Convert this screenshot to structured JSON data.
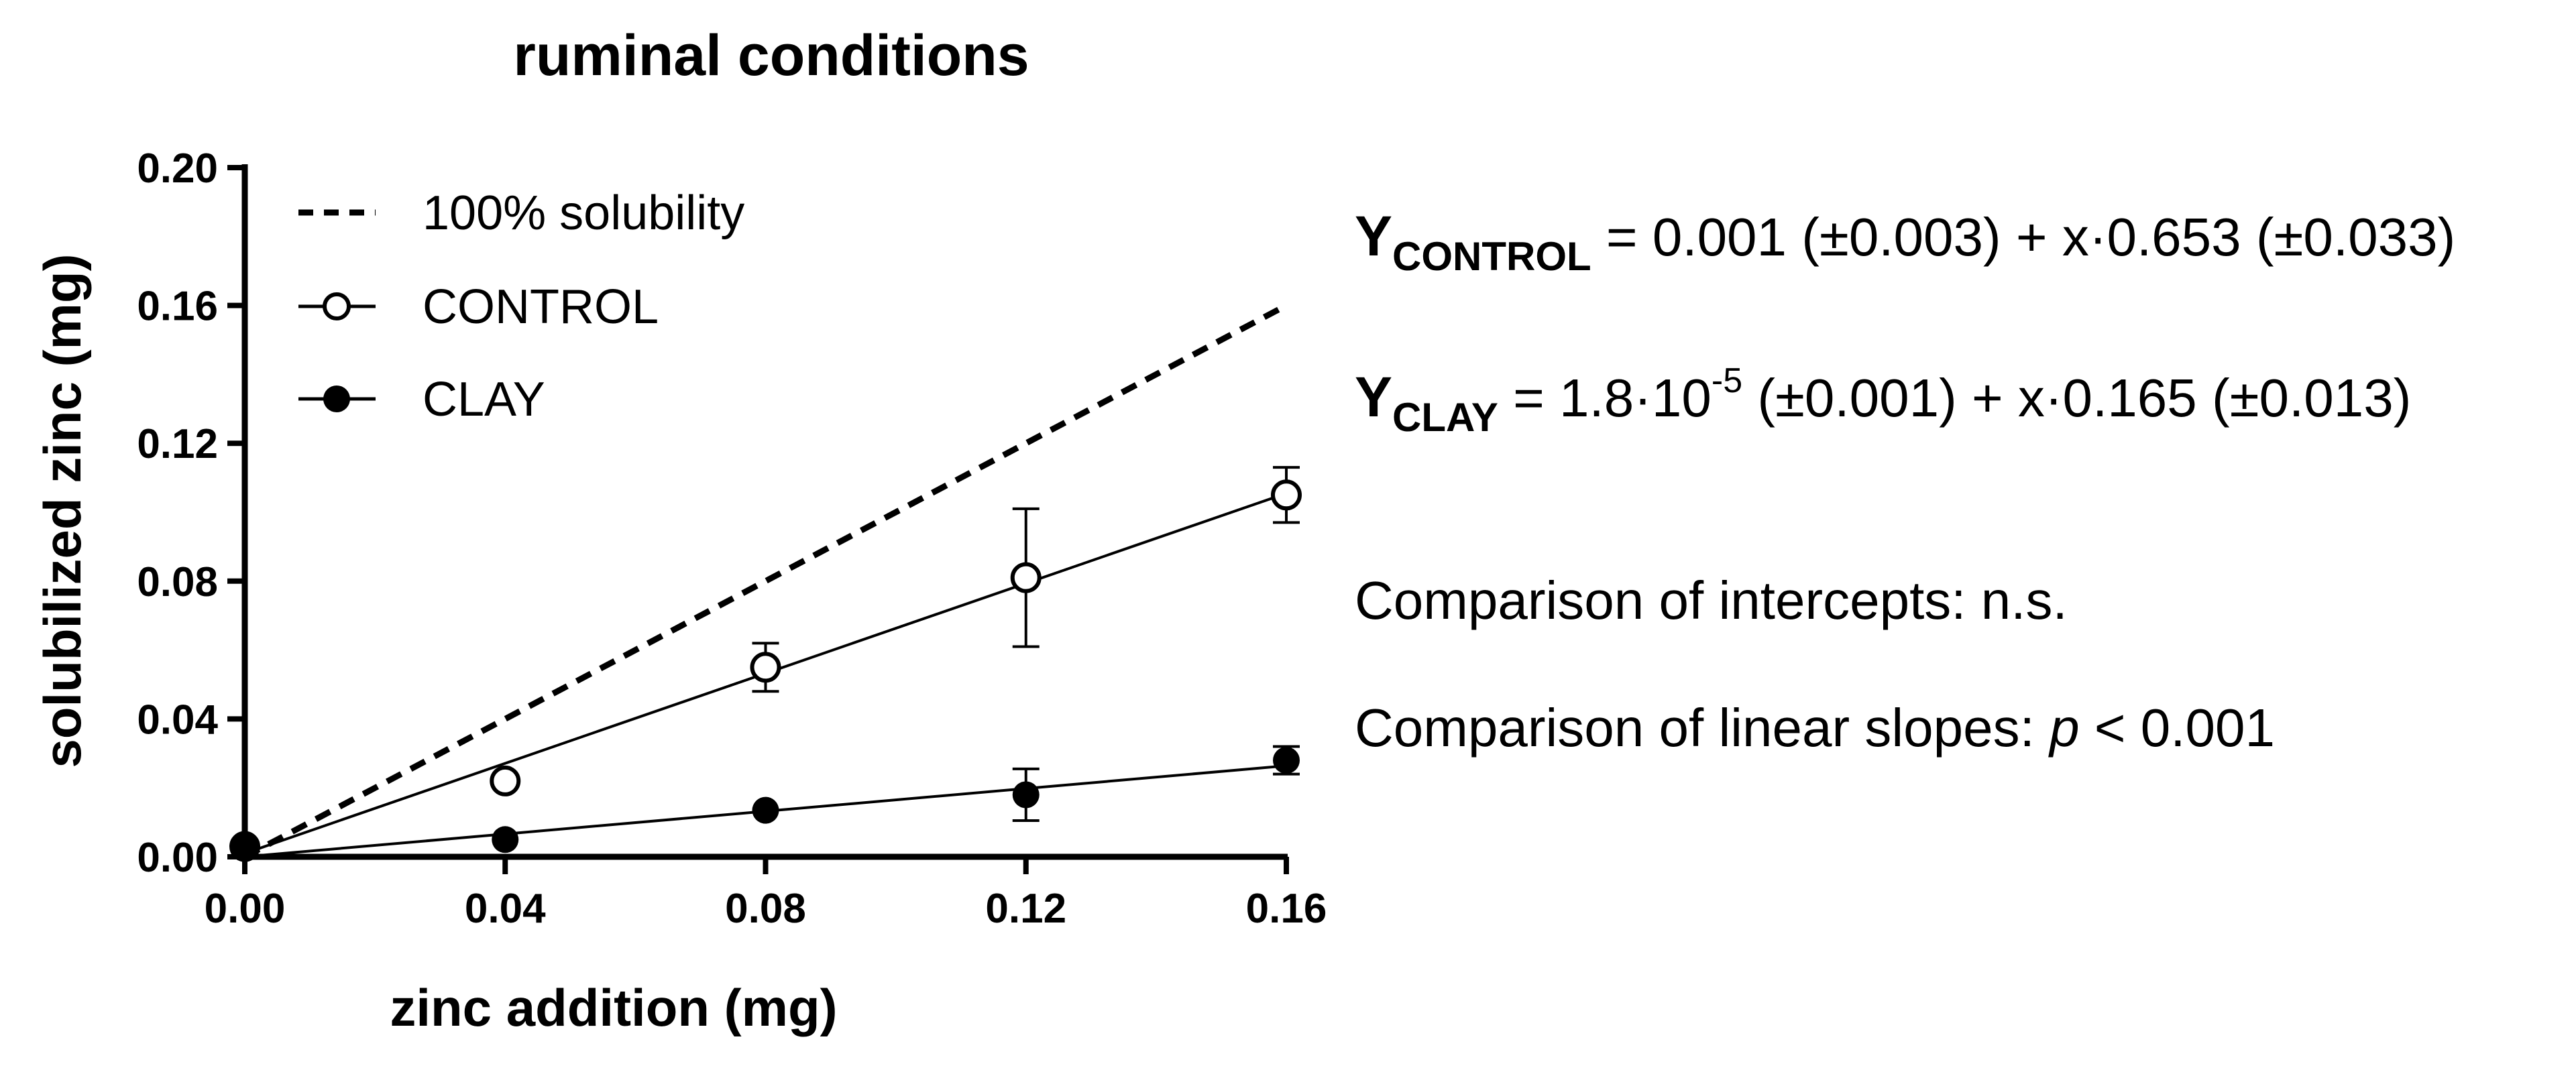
{
  "chart_data": {
    "type": "scatter",
    "title": "ruminal conditions",
    "xlabel": "zinc addition (mg)",
    "ylabel": "solubilized zinc (mg)",
    "xlim": [
      0,
      0.16
    ],
    "ylim": [
      0,
      0.2
    ],
    "xticks": [
      "0.00",
      "0.04",
      "0.08",
      "0.12",
      "0.16"
    ],
    "yticks": [
      "0.00",
      "0.04",
      "0.08",
      "0.12",
      "0.16",
      "0.20"
    ],
    "legend_position": "top-left",
    "series": [
      {
        "name": "100% solubility",
        "style": "dashed-line",
        "line": {
          "x": [
            0,
            0.16
          ],
          "y": [
            0,
            0.16
          ]
        }
      },
      {
        "name": "CONTROL",
        "style": "open-circle",
        "x": [
          0,
          0.04,
          0.08,
          0.12,
          0.16
        ],
        "y": [
          0.003,
          0.022,
          0.055,
          0.081,
          0.105
        ],
        "error": [
          0,
          0,
          0.007,
          0.02,
          0.008
        ],
        "fit": {
          "intercept": 0.001,
          "slope": 0.653
        }
      },
      {
        "name": "CLAY",
        "style": "filled-circle",
        "x": [
          0,
          0.04,
          0.08,
          0.12,
          0.16
        ],
        "y": [
          0.003,
          0.005,
          0.0135,
          0.018,
          0.028
        ],
        "error": [
          0,
          0,
          0,
          0.0075,
          0.004
        ],
        "fit": {
          "intercept": 1.8e-05,
          "slope": 0.165
        }
      }
    ]
  },
  "annotations": {
    "eq_control": {
      "y": "Y",
      "sub": "CONTROL",
      "rhs": " = 0.001 (±0.003) + x·0.653 (±0.033)"
    },
    "eq_clay": {
      "y": "Y",
      "sub": "CLAY",
      "pre": " = 1.8·10",
      "sup": "-5",
      "post": " (±0.001) + x·0.165 (±0.013)"
    },
    "cmp_intercepts": "Comparison of intercepts: n.s.",
    "cmp_slopes": {
      "label": "Comparison of linear slopes: ",
      "p": "p",
      "value": " < 0.001"
    }
  }
}
